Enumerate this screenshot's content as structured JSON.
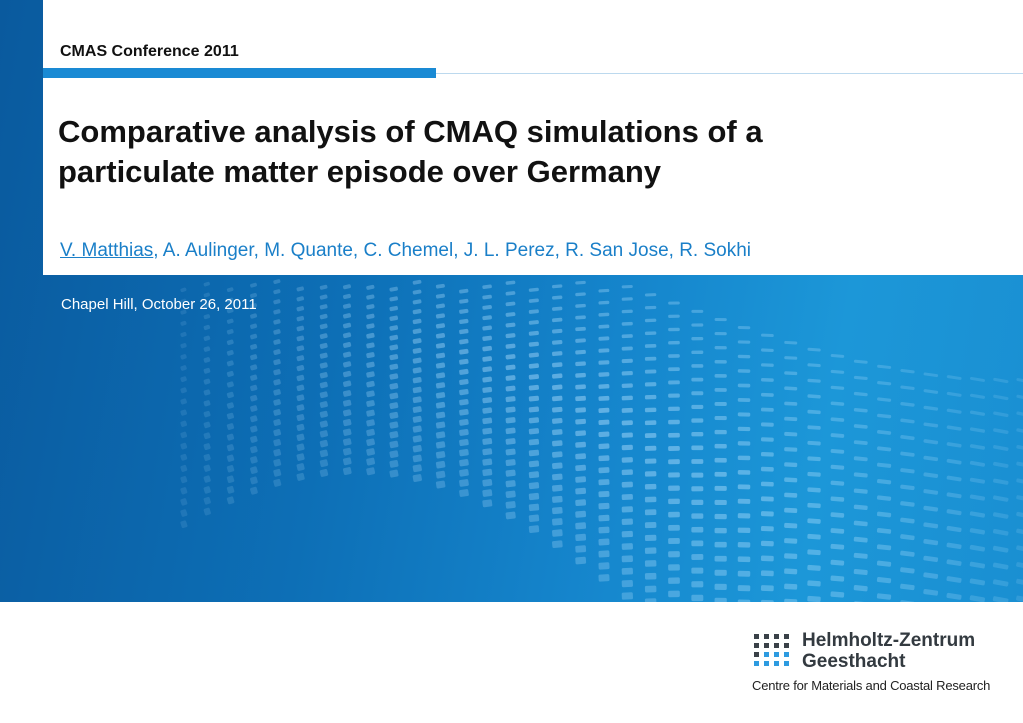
{
  "header": {
    "conference": "CMAS Conference 2011"
  },
  "slide": {
    "title_line1": "Comparative analysis of CMAQ simulations of a",
    "title_line2": "particulate matter episode over Germany",
    "presenter": "V. Matthias",
    "coauthors": ", A. Aulinger, M. Quante, C. Chemel, J. L. Perez, R. San Jose, R. Sokhi",
    "venue": "Chapel Hill, October 26, 2011"
  },
  "logo": {
    "name_line1": "Helmholtz-Zentrum",
    "name_line2": "Geesthacht",
    "tagline": "Centre for Materials and Coastal Research"
  },
  "colors": {
    "accent": "#1a8ad4",
    "author_text": "#1a7fc8",
    "background_blue": "#0d6fb6"
  }
}
